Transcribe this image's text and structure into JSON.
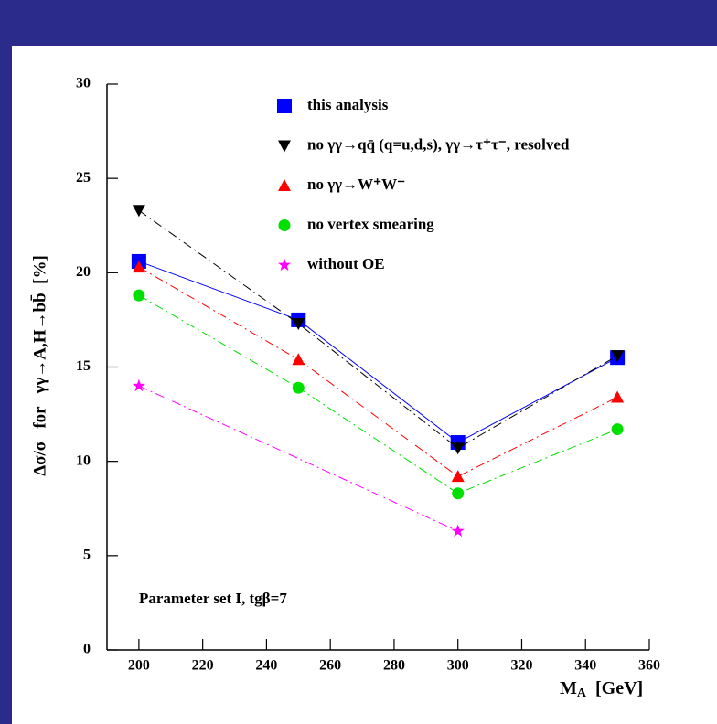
{
  "chart_data": {
    "type": "line",
    "x_label": {
      "symbol": "M",
      "subscript": "A",
      "unit": "[GeV]"
    },
    "y_label": "Δσ/σ   for   γγ→A,H→bb̄  [%]",
    "annotation": "Parameter set I, tgβ=7",
    "xlim": [
      190,
      360
    ],
    "xticks": [
      200,
      220,
      240,
      260,
      280,
      300,
      320,
      340,
      360
    ],
    "ylim": [
      0,
      30
    ],
    "yticks": [
      0,
      5,
      10,
      15,
      20,
      25,
      30
    ],
    "series": [
      {
        "name": "this analysis",
        "color": "#0000ff",
        "marker": "square",
        "linestyle": "solid",
        "x": [
          200,
          250,
          300,
          350
        ],
        "values": [
          20.6,
          17.5,
          11.0,
          15.5
        ]
      },
      {
        "name": "no γγ→qq̄ (q=u,d,s), γγ→τ⁺τ⁻, resolved",
        "color": "#000000",
        "marker": "triangle-down",
        "linestyle": "dashdot",
        "x": [
          200,
          250,
          300,
          350
        ],
        "values": [
          23.3,
          17.3,
          10.7,
          15.6
        ]
      },
      {
        "name": "no γγ→W⁺W⁻",
        "color": "#ff0000",
        "marker": "triangle-up",
        "linestyle": "dashdot",
        "x": [
          200,
          250,
          300,
          350
        ],
        "values": [
          20.3,
          15.4,
          9.2,
          13.4
        ]
      },
      {
        "name": "no vertex smearing",
        "color": "#00e000",
        "marker": "circle",
        "linestyle": "dashdot",
        "x": [
          200,
          250,
          300,
          350
        ],
        "values": [
          18.8,
          13.9,
          8.3,
          11.7
        ]
      },
      {
        "name": "without OE",
        "color": "#ff00ff",
        "marker": "star",
        "linestyle": "dashdot",
        "x": [
          200,
          300
        ],
        "values": [
          14.0,
          6.3
        ]
      }
    ]
  }
}
